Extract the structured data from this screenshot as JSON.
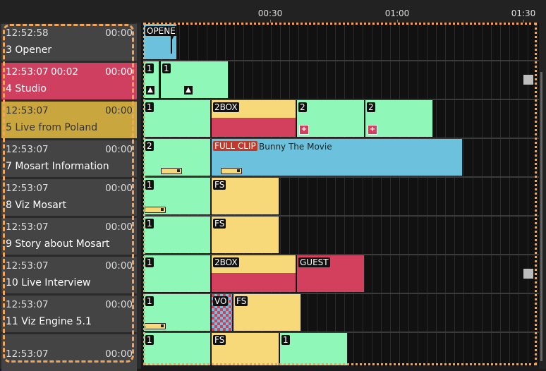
{
  "header": {
    "times": [
      "00:30",
      "01:00",
      "01:30"
    ]
  },
  "rundown": [
    {
      "clock": "12:52:58",
      "extra": "",
      "duration": "00:00",
      "title": "3 Opener"
    },
    {
      "clock": "12:53:07",
      "extra": "00:02",
      "duration": "00:00",
      "title": "4 Studio"
    },
    {
      "clock": "12:53:07",
      "extra": "",
      "duration": "00:00",
      "title": "5 Live from Poland"
    },
    {
      "clock": "12:53:07",
      "extra": "",
      "duration": "00:00",
      "title": "7 Mosart Information"
    },
    {
      "clock": "12:53:07",
      "extra": "",
      "duration": "00:00",
      "title": "8 Viz Mosart"
    },
    {
      "clock": "12:53:07",
      "extra": "",
      "duration": "00:00",
      "title": "9 Story about Mosart"
    },
    {
      "clock": "12:53:07",
      "extra": "",
      "duration": "00:00",
      "title": "10 Live Interview"
    },
    {
      "clock": "12:53:07",
      "extra": "",
      "duration": "00:00",
      "title": "11 Viz Engine 5.1"
    },
    {
      "clock": "12:53:07",
      "extra": "",
      "duration": "00:00",
      "title": ""
    }
  ],
  "timeline": {
    "opener": "OPENER",
    "studio": [
      "1",
      "1"
    ],
    "poland": [
      "1",
      "2BOX",
      "2",
      "2"
    ],
    "info": [
      "2",
      "FULL CLIP",
      "Bunny The Movie"
    ],
    "viz": [
      "1",
      "FS"
    ],
    "story": [
      "1",
      "FS"
    ],
    "interview": [
      "1",
      "2BOX",
      "GUEST"
    ],
    "engine": [
      "1",
      "VO",
      "FS"
    ],
    "last": [
      "1",
      "FS",
      "1"
    ]
  },
  "colors": {
    "camera": "#8ff8b8",
    "graphic": "#f8d97a",
    "clip": "#6cc1dc",
    "live": "#d3405d",
    "highlight": "#f2a55a"
  }
}
